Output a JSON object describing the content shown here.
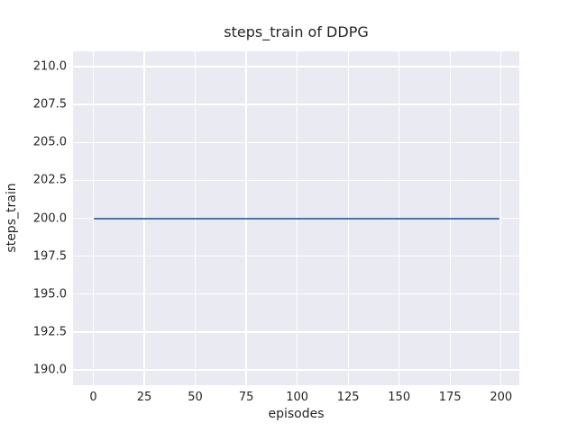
{
  "chart_data": {
    "type": "line",
    "title": "steps_train of DDPG",
    "xlabel": "episodes",
    "ylabel": "steps_train",
    "xlim": [
      -9.95,
      208.95
    ],
    "ylim": [
      189.0,
      211.0
    ],
    "xticks": [
      0,
      25,
      50,
      75,
      100,
      125,
      150,
      175,
      200
    ],
    "xtick_labels": [
      "0",
      "25",
      "50",
      "75",
      "100",
      "125",
      "150",
      "175",
      "200"
    ],
    "yticks": [
      190.0,
      192.5,
      195.0,
      197.5,
      200.0,
      202.5,
      205.0,
      207.5,
      210.0
    ],
    "ytick_labels": [
      "190.0",
      "192.5",
      "195.0",
      "197.5",
      "200.0",
      "202.5",
      "205.0",
      "207.5",
      "210.0"
    ],
    "grid": true,
    "legend": null,
    "plot_bg": "#eaeaf2",
    "grid_color": "#ffffff",
    "text_color": "#262626",
    "series": [
      {
        "name": "steps_train",
        "color": "#4c72b0",
        "x": [
          0,
          199
        ],
        "y": [
          200,
          200
        ],
        "note": "constant value 200 for every episode from 0 to 199"
      }
    ]
  }
}
